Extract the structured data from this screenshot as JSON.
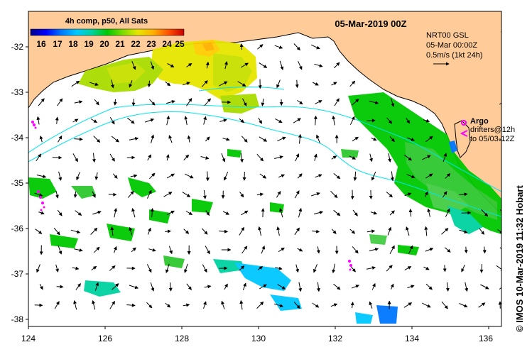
{
  "map": {
    "title": "05-Mar-2019 00Z",
    "colorbar": {
      "title": "4h comp, p50, All Sats",
      "ticks": [
        "16",
        "17",
        "18",
        "19",
        "20",
        "21",
        "22",
        "23",
        "24",
        "25"
      ],
      "colors": [
        "#00008b",
        "#0000ff",
        "#0077ff",
        "#00c8ff",
        "#00d2a0",
        "#00c800",
        "#7ddc00",
        "#e6e600",
        "#ffb000",
        "#ff5000",
        "#c80000"
      ]
    },
    "info": {
      "line1": "NRT00 GSL",
      "line2": "05-Mar 00:00Z",
      "line3": "0.5m/s (1kt 24h)"
    },
    "argo": {
      "label": "Argo",
      "drifters1": "drifters@12h",
      "drifters2": "to 05/03-12Z"
    },
    "credit": "© IMOS 10-Mar-2019 11:32 Hobart",
    "x_ticks": [
      "124",
      "126",
      "128",
      "130",
      "132",
      "134",
      "136"
    ],
    "y_ticks": [
      "-32",
      "-33",
      "-34",
      "-35",
      "-36",
      "-37",
      "-38"
    ],
    "colors": {
      "land": "#ffcc99",
      "contour": "#00e5ee",
      "arrow": "#000000",
      "argo": "#ff00ff"
    }
  }
}
